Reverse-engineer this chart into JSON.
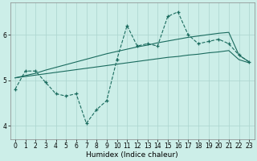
{
  "title": "",
  "xlabel": "Humidex (Indice chaleur)",
  "background_color": "#cceee8",
  "grid_color": "#aad4ce",
  "line_color": "#1a6b5e",
  "xlim": [
    -0.5,
    23.5
  ],
  "ylim": [
    3.7,
    6.7
  ],
  "yticks": [
    4,
    5,
    6
  ],
  "xticks": [
    0,
    1,
    2,
    3,
    4,
    5,
    6,
    7,
    8,
    9,
    10,
    11,
    12,
    13,
    14,
    15,
    16,
    17,
    18,
    19,
    20,
    21,
    22,
    23
  ],
  "series1_y": [
    4.8,
    5.2,
    5.2,
    4.95,
    4.7,
    4.65,
    4.7,
    4.05,
    4.35,
    4.55,
    5.45,
    6.2,
    5.75,
    5.8,
    5.75,
    6.4,
    6.5,
    6.0,
    5.8,
    5.85,
    5.9,
    5.8,
    5.55,
    5.4
  ],
  "upper_trend": [
    5.05,
    5.1,
    5.15,
    5.22,
    5.28,
    5.34,
    5.4,
    5.46,
    5.52,
    5.58,
    5.63,
    5.68,
    5.73,
    5.77,
    5.82,
    5.86,
    5.9,
    5.94,
    5.97,
    6.0,
    6.03,
    6.05,
    5.55,
    5.4
  ],
  "lower_trend": [
    5.05,
    5.08,
    5.11,
    5.14,
    5.17,
    5.2,
    5.23,
    5.26,
    5.29,
    5.32,
    5.35,
    5.38,
    5.41,
    5.44,
    5.47,
    5.5,
    5.52,
    5.55,
    5.57,
    5.6,
    5.62,
    5.65,
    5.45,
    5.38
  ],
  "figsize": [
    3.2,
    2.0
  ],
  "dpi": 100,
  "tick_fontsize": 5.5,
  "xlabel_fontsize": 6.5
}
